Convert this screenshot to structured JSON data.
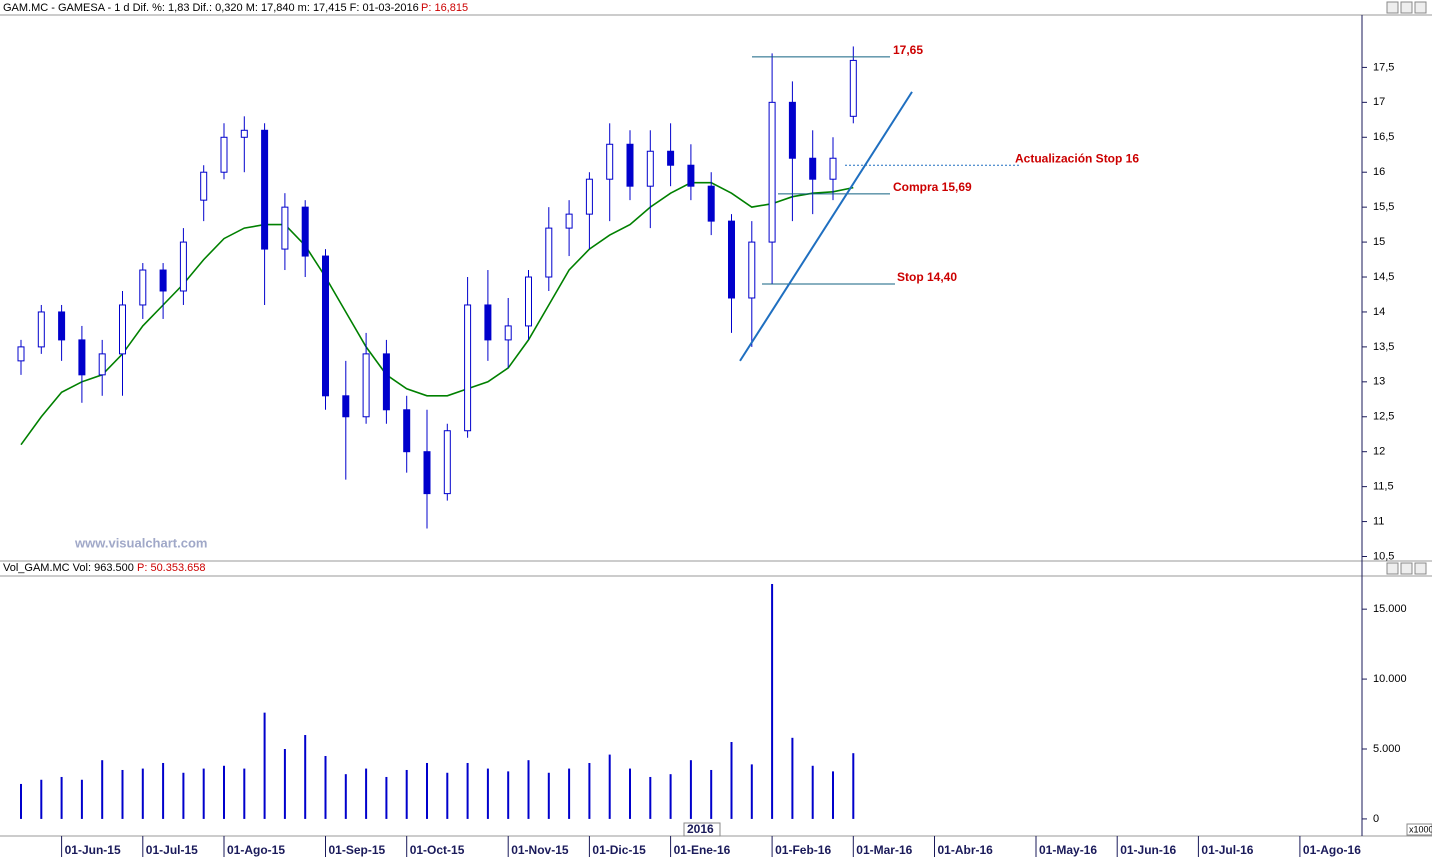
{
  "chart_data": [
    {
      "type": "candlestick",
      "header": "GAM.MC - GAMESA - 1 d  Dif. %: 1,83  Dif.: 0,320  M: 17,840  m: 17,415  F: 01-03-2016",
      "header_price": "P: 16,815",
      "watermark": "www.visualchart.com",
      "color": "#0000cc",
      "open": [
        13.3,
        13.5,
        14.0,
        13.6,
        13.1,
        13.4,
        14.1,
        14.6,
        14.3,
        15.6,
        16.0,
        16.5,
        16.6,
        14.9,
        15.5,
        14.8,
        12.8,
        12.5,
        13.4,
        12.6,
        12.0,
        11.4,
        12.3,
        14.1,
        13.6,
        13.8,
        14.5,
        15.2,
        15.4,
        15.9,
        16.4,
        15.8,
        16.3,
        16.1,
        15.8,
        15.3,
        14.2,
        15.0,
        17.0,
        16.2,
        15.9,
        16.8,
        null,
        null,
        null,
        null,
        null,
        null,
        null,
        null,
        null,
        null,
        null,
        null,
        null,
        null,
        null,
        null,
        null,
        null,
        null,
        null,
        null,
        null,
        null,
        null,
        null
      ],
      "high": [
        13.6,
        14.1,
        14.1,
        13.8,
        13.6,
        14.3,
        14.7,
        14.7,
        15.2,
        16.1,
        16.7,
        16.8,
        16.7,
        15.7,
        15.6,
        14.9,
        13.3,
        13.7,
        13.6,
        12.8,
        12.6,
        12.4,
        14.5,
        14.6,
        14.2,
        14.6,
        15.5,
        15.6,
        16.0,
        16.7,
        16.6,
        16.6,
        16.7,
        16.4,
        16.0,
        15.4,
        15.3,
        17.7,
        17.3,
        16.6,
        16.5,
        17.8,
        null,
        null,
        null,
        null,
        null,
        null,
        null,
        null,
        null,
        null,
        null,
        null,
        null,
        null,
        null,
        null,
        null,
        null,
        null,
        null,
        null,
        null,
        null,
        null,
        null
      ],
      "low": [
        13.1,
        13.4,
        13.3,
        12.7,
        12.8,
        12.8,
        13.9,
        13.9,
        14.1,
        15.3,
        15.9,
        16.0,
        14.1,
        14.6,
        14.5,
        12.6,
        11.6,
        12.4,
        12.4,
        11.7,
        10.9,
        11.3,
        12.2,
        13.3,
        13.2,
        13.6,
        14.3,
        14.8,
        14.9,
        15.3,
        15.6,
        15.2,
        15.8,
        15.6,
        15.1,
        13.7,
        13.5,
        14.4,
        15.3,
        15.4,
        15.6,
        16.7,
        null,
        null,
        null,
        null,
        null,
        null,
        null,
        null,
        null,
        null,
        null,
        null,
        null,
        null,
        null,
        null,
        null,
        null,
        null,
        null,
        null,
        null,
        null,
        null,
        null
      ],
      "close": [
        13.5,
        14.0,
        13.6,
        13.1,
        13.4,
        14.1,
        14.6,
        14.3,
        15.0,
        16.0,
        16.5,
        16.6,
        14.9,
        15.5,
        14.8,
        12.8,
        12.5,
        13.4,
        12.6,
        12.0,
        11.4,
        12.3,
        14.1,
        13.6,
        13.8,
        14.5,
        15.2,
        15.4,
        15.9,
        16.4,
        15.8,
        16.3,
        16.1,
        15.8,
        15.3,
        14.2,
        15.0,
        17.0,
        16.2,
        15.9,
        16.2,
        17.6,
        null,
        null,
        null,
        null,
        null,
        null,
        null,
        null,
        null,
        null,
        null,
        null,
        null,
        null,
        null,
        null,
        null,
        null,
        null,
        null,
        null,
        null,
        null,
        null,
        null
      ],
      "moving_average": {
        "color": "#008000",
        "values": [
          12.1,
          12.5,
          12.85,
          13.0,
          13.1,
          13.4,
          13.8,
          14.1,
          14.4,
          14.75,
          15.05,
          15.2,
          15.25,
          15.25,
          14.95,
          14.5,
          14.0,
          13.5,
          13.1,
          12.9,
          12.8,
          12.8,
          12.9,
          13.0,
          13.2,
          13.6,
          14.1,
          14.6,
          14.9,
          15.1,
          15.25,
          15.5,
          15.7,
          15.85,
          15.85,
          15.7,
          15.5,
          15.55,
          15.65,
          15.7,
          15.72,
          15.78,
          null,
          null,
          null,
          null,
          null,
          null,
          null,
          null,
          null,
          null,
          null,
          null,
          null,
          null,
          null,
          null,
          null,
          null,
          null,
          null,
          null,
          null,
          null,
          null,
          null
        ]
      },
      "trendline": {
        "color": "#1f6fc0",
        "values": [
          13.3,
          17.15
        ]
      },
      "annotations": [
        {
          "text": "17,65",
          "value": 17.65,
          "style": "solid"
        },
        {
          "text": "Actualización Stop 16",
          "value": 16.1,
          "style": "dotted"
        },
        {
          "text": "Compra 15,69",
          "value": 15.69,
          "style": "solid"
        },
        {
          "text": "Stop 14,40",
          "value": 14.4,
          "style": "solid"
        }
      ],
      "ylim": [
        10.45,
        18.25
      ],
      "yticks": [
        {
          "value": 10.5,
          "label": "10,5"
        },
        11,
        {
          "value": 11.5,
          "label": "11,5"
        },
        12,
        {
          "value": 12.5,
          "label": "12,5"
        },
        13,
        {
          "value": 13.5,
          "label": "13,5"
        },
        14,
        {
          "value": 14.5,
          "label": "14,5"
        },
        15,
        {
          "value": 15.5,
          "label": "15,5"
        },
        16,
        {
          "value": 16.5,
          "label": "16,5"
        },
        17,
        {
          "value": 17.5,
          "label": "17,5"
        }
      ]
    },
    {
      "type": "bar",
      "header": "Vol_GAM.MC  Vol: 963.500",
      "header_price": "P: 50.353.658",
      "unit_label": "x1000",
      "year_label": "2016",
      "color": "#0000cc",
      "categories": [
        null,
        null,
        "01-Jun-15",
        null,
        null,
        null,
        "01-Jul-15",
        null,
        null,
        null,
        "01-Ago-15",
        null,
        null,
        null,
        null,
        "01-Sep-15",
        null,
        null,
        null,
        "01-Oct-15",
        null,
        null,
        null,
        null,
        "01-Nov-15",
        null,
        null,
        null,
        "01-Dic-15",
        null,
        null,
        null,
        "01-Ene-16",
        null,
        null,
        null,
        null,
        "01-Feb-16",
        null,
        null,
        null,
        "01-Mar-16",
        null,
        null,
        null,
        "01-Abr-16",
        null,
        null,
        null,
        null,
        "01-May-16",
        null,
        null,
        null,
        "01-Jun-16",
        null,
        null,
        null,
        "01-Jul-16",
        null,
        null,
        null,
        null,
        "01-Ago-16",
        null,
        null,
        null
      ],
      "values": [
        2500,
        2800,
        3000,
        2800,
        4200,
        3500,
        3600,
        4000,
        3300,
        3600,
        3800,
        3600,
        7600,
        5000,
        6000,
        4500,
        3200,
        3600,
        3000,
        3500,
        4000,
        3300,
        4000,
        3600,
        3400,
        4200,
        3300,
        3600,
        4000,
        4600,
        3600,
        3000,
        3200,
        4200,
        3500,
        5500,
        3900,
        16800,
        5800,
        3800,
        3400,
        4700,
        null,
        null,
        null,
        null,
        null,
        null,
        null,
        null,
        null,
        null,
        null,
        null,
        null,
        null,
        null,
        null,
        null,
        null,
        null,
        null,
        null,
        null,
        null,
        null,
        null
      ],
      "ylim": [
        -1150,
        17300
      ],
      "yticks": [
        0,
        {
          "value": 5000,
          "label": "5.000"
        },
        {
          "value": 10000,
          "label": "10.000"
        },
        {
          "value": 15000,
          "label": "15.000"
        }
      ]
    }
  ]
}
